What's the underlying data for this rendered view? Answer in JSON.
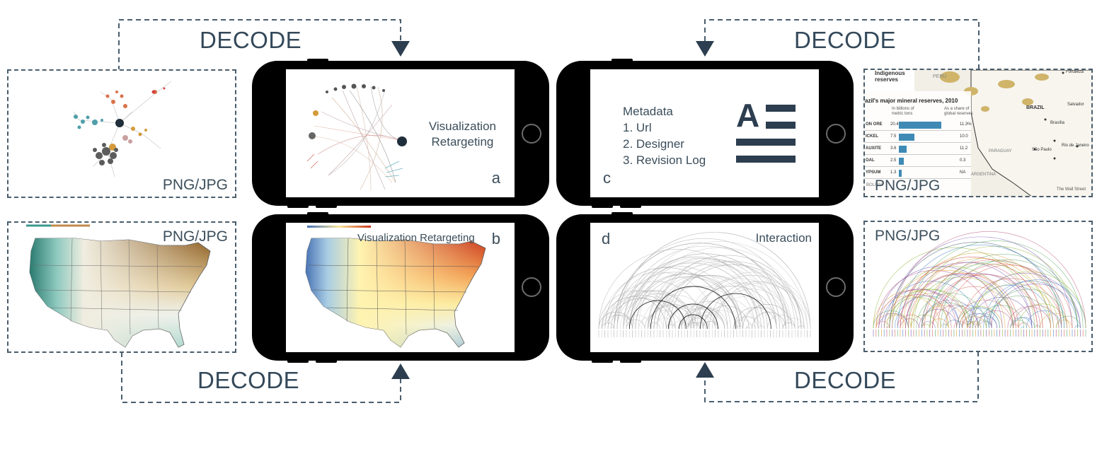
{
  "labels": {
    "decode_top_left": "DECODE",
    "decode_top_right": "DECODE",
    "decode_bottom_left": "DECODE",
    "decode_bottom_right": "DECODE",
    "png_tl": "PNG/JPG",
    "png_bl": "PNG/JPG",
    "png_tr": "PNG/JPG",
    "png_br": "PNG/JPG"
  },
  "phone_a": {
    "title_line1": "Visualization",
    "title_line2": "Retargeting",
    "letter": "a"
  },
  "phone_b": {
    "title": "Visualization Retargeting",
    "letter": "b"
  },
  "phone_c": {
    "heading": "Metadata",
    "items": [
      "1. Url",
      "2. Designer",
      "3. Revision Log"
    ],
    "letter": "c",
    "icon_letter": "A"
  },
  "phone_d": {
    "title": "Interaction",
    "letter": "d"
  },
  "brazil_chart": {
    "legend_title_1": "Indigenous",
    "legend_title_2": "reserves",
    "country_peru": "PERU",
    "title": "azil's major mineral reserves, 2010",
    "col1": "In billions of metric tons",
    "col2": "As a share of global reserves",
    "rows": [
      {
        "name": "ON ORE",
        "value": "20.4",
        "share": "11.3%",
        "v": 20.4
      },
      {
        "name": "ICKEL",
        "value": "7.5",
        "share": "10.0",
        "v": 7.5
      },
      {
        "name": "AUXITE",
        "value": "3.6",
        "share": "11.2",
        "v": 3.6
      },
      {
        "name": "OAL",
        "value": "2.5",
        "share": "0.3",
        "v": 2.5
      },
      {
        "name": "YPSUM",
        "value": "1.3",
        "share": "NA",
        "v": 1.3
      }
    ],
    "cities": [
      "Fortaleza",
      "BRAZIL",
      "Salvador",
      "Brasília",
      "São Paulo",
      "Rio de Janeiro"
    ],
    "bolivia": "BOLIVIA",
    "paraguay": "PARAGUAY",
    "argentina": "ARGENTINA",
    "source": "The Wall Street"
  },
  "colors": {
    "dark": "#2c3e4f",
    "decode": "#34495a",
    "phone": "#000000",
    "bar": "#3f8ab5"
  }
}
